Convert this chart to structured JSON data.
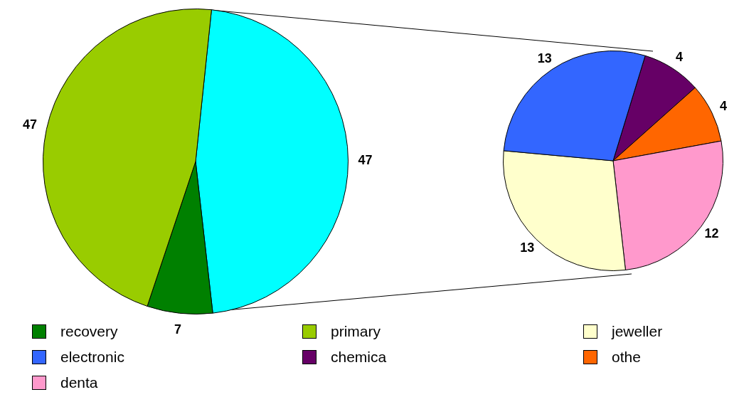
{
  "chart_data": [
    {
      "type": "pie",
      "categories": [
        null,
        "recovery",
        "primary"
      ],
      "values": [
        47,
        7,
        47
      ],
      "colors": [
        "#00ffff",
        "#008000",
        "#99cc00"
      ],
      "data_labels": true,
      "legend": "bottom"
    },
    {
      "type": "pie",
      "categories": [
        "chemica",
        "othe",
        "denta",
        "jeweller",
        "electronic"
      ],
      "values": [
        4,
        4,
        12,
        13,
        13
      ],
      "colors": [
        "#660066",
        "#ff6600",
        "#ff99cc",
        "#ffffcc",
        "#3366ff"
      ],
      "data_labels": true,
      "legend": "bottom"
    }
  ]
}
